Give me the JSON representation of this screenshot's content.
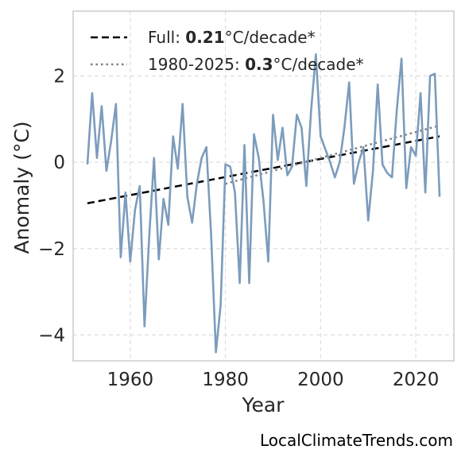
{
  "chart_data": {
    "type": "line",
    "title": "",
    "xlabel": "Year",
    "ylabel": "Anomaly (°C)",
    "xlim": [
      1948,
      2028
    ],
    "ylim": [
      -4.6,
      3.5
    ],
    "xticks": [
      1960,
      1980,
      2000,
      2020
    ],
    "yticks": [
      2,
      0,
      -2,
      -4
    ],
    "ytick_labels": [
      "2",
      "0",
      "−2",
      "−4"
    ],
    "grid": true,
    "legend_position": "top-left",
    "colors": {
      "series": "#7c9cbc",
      "full_trend": "#000000",
      "recent_trend": "#808080"
    },
    "series": [
      {
        "x": [
          1951,
          1952,
          1953,
          1954,
          1955,
          1956,
          1957,
          1958,
          1959,
          1960,
          1961,
          1962,
          1963,
          1964,
          1965,
          1966,
          1967,
          1968,
          1969,
          1970,
          1971,
          1972,
          1973,
          1974,
          1975,
          1976,
          1977,
          1978,
          1979,
          1980,
          1981,
          1982,
          1983,
          1984,
          1985,
          1986,
          1987,
          1988,
          1989,
          1990,
          1991,
          1992,
          1993,
          1994,
          1995,
          1996,
          1997,
          1998,
          1999,
          2000,
          2001,
          2002,
          2003,
          2004,
          2005,
          2006,
          2007,
          2008,
          2009,
          2010,
          2011,
          2012,
          2013,
          2014,
          2015,
          2016,
          2017,
          2018,
          2019,
          2020,
          2021,
          2022,
          2023,
          2024,
          2025
        ],
        "values": [
          -0.05,
          1.6,
          0.1,
          1.3,
          -0.2,
          0.5,
          1.35,
          -2.2,
          -0.7,
          -2.3,
          -1.1,
          -0.55,
          -3.8,
          -1.7,
          0.1,
          -2.25,
          -0.85,
          -1.45,
          0.6,
          -0.15,
          1.35,
          -0.8,
          -1.4,
          -0.5,
          0.1,
          0.35,
          -1.7,
          -4.4,
          -3.3,
          -0.05,
          -0.1,
          -0.7,
          -2.8,
          0.4,
          -2.8,
          0.65,
          0.1,
          -0.9,
          -2.3,
          1.1,
          0.05,
          0.8,
          -0.3,
          -0.1,
          1.1,
          0.8,
          -0.55,
          1.2,
          2.5,
          0.6,
          0.3,
          0.0,
          -0.35,
          0.0,
          0.8,
          1.85,
          -0.5,
          0.0,
          0.35,
          -1.35,
          -0.2,
          1.8,
          -0.05,
          -0.25,
          -0.35,
          1.2,
          2.4,
          -0.6,
          0.35,
          0.15,
          1.6,
          -0.7,
          2.0,
          2.05,
          -0.8
        ]
      }
    ],
    "trends": [
      {
        "label": "Full",
        "rate": "0.21",
        "unit": "°C/decade*",
        "style": "dashed",
        "x": [
          1951,
          2025
        ],
        "y": [
          -0.95,
          0.6
        ]
      },
      {
        "label": "1980-2025",
        "rate": "0.3",
        "unit": "°C/decade*",
        "style": "dotted",
        "x": [
          1980,
          2025
        ],
        "y": [
          -0.5,
          0.85
        ]
      }
    ]
  },
  "legend": {
    "full_prefix": "Full: ",
    "full_rate": "0.21",
    "full_unit": "°C/decade*",
    "recent_prefix": "1980-2025: ",
    "recent_rate": "0.3",
    "recent_unit": "°C/decade*"
  },
  "credit": "LocalClimateTrends.com"
}
